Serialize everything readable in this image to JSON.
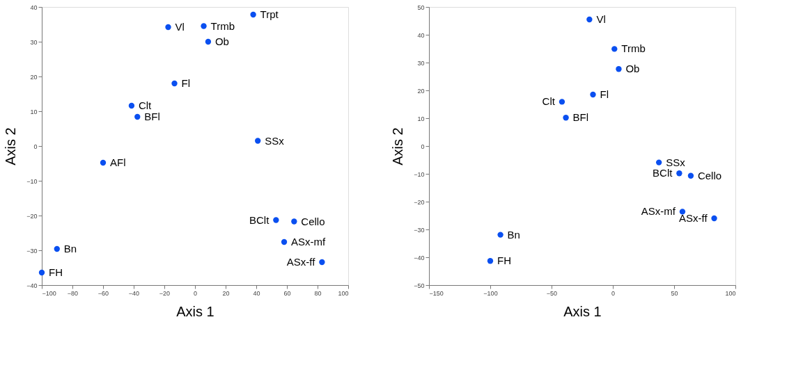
{
  "chart_data": [
    {
      "type": "scatter",
      "xlabel": "Axis 1",
      "ylabel": "Axis 2",
      "color": "#0a4ff0",
      "marker": "circle",
      "grid": false,
      "xlim": [
        -100,
        100
      ],
      "ylim": [
        -40,
        40
      ],
      "xticks": [
        -100,
        -80,
        -60,
        -40,
        -20,
        0,
        20,
        40,
        60,
        80,
        100
      ],
      "yticks": [
        -40,
        -30,
        -20,
        -10,
        0,
        10,
        20,
        30,
        40
      ],
      "x": [
        -17.5,
        5.7,
        38,
        8.6,
        -13.4,
        -41.4,
        -37.6,
        41,
        -60,
        52.9,
        64.7,
        58.2,
        82.9,
        -90.1,
        -100
      ],
      "values": [
        34.2,
        34.5,
        37.8,
        30.0,
        18.0,
        11.6,
        8.4,
        1.5,
        -4.8,
        -21.3,
        -21.7,
        -27.6,
        -33.4,
        -29.6,
        -36.4
      ],
      "annotations": [
        {
          "text": "Vl",
          "x": -17.5,
          "y": 34.2
        },
        {
          "text": "Trmb",
          "x": 5.7,
          "y": 34.5
        },
        {
          "text": "Trpt",
          "x": 38,
          "y": 37.8
        },
        {
          "text": "Ob",
          "x": 8.6,
          "y": 30.0
        },
        {
          "text": "Fl",
          "x": -13.4,
          "y": 18.0
        },
        {
          "text": "Clt",
          "x": -41.4,
          "y": 11.6
        },
        {
          "text": "BFl",
          "x": -37.6,
          "y": 8.4
        },
        {
          "text": "SSx",
          "x": 41,
          "y": 1.5
        },
        {
          "text": "AFl",
          "x": -60,
          "y": -4.8
        },
        {
          "text": "BClt",
          "x": 52.9,
          "y": -21.3
        },
        {
          "text": "Cello",
          "x": 64.7,
          "y": -21.7
        },
        {
          "text": "ASx-mf",
          "x": 58.2,
          "y": -27.6
        },
        {
          "text": "ASx-ff",
          "x": 82.9,
          "y": -33.4
        },
        {
          "text": "Bn",
          "x": -90.1,
          "y": -29.6
        },
        {
          "text": "FH",
          "x": -100,
          "y": -36.4
        }
      ]
    },
    {
      "type": "scatter",
      "xlabel": "Axis 1",
      "ylabel": "Axis 2",
      "color": "#0a4ff0",
      "marker": "circle",
      "grid": false,
      "xlim": [
        -150,
        100
      ],
      "ylim": [
        -50,
        50
      ],
      "xticks": [
        -150,
        -100,
        -50,
        0,
        50,
        100
      ],
      "yticks": [
        -50,
        -40,
        -30,
        -20,
        -10,
        0,
        10,
        20,
        30,
        40,
        50
      ],
      "x": [
        -19.1,
        1.3,
        4.8,
        -16.2,
        -41.5,
        -38.3,
        37.6,
        54.2,
        63.6,
        56.8,
        82.7,
        -91.7,
        -100
      ],
      "values": [
        45.5,
        34.9,
        27.7,
        18.5,
        15.9,
        10.2,
        -5.9,
        -9.8,
        -10.7,
        -23.6,
        -26.0,
        -31.9,
        -41.3
      ],
      "annotations": [
        {
          "text": "Vl",
          "x": -19.1,
          "y": 45.5
        },
        {
          "text": "Trmb",
          "x": 1.3,
          "y": 34.9
        },
        {
          "text": "Ob",
          "x": 4.8,
          "y": 27.7
        },
        {
          "text": "Fl",
          "x": -16.2,
          "y": 18.5
        },
        {
          "text": "Clt",
          "x": -41.5,
          "y": 15.9
        },
        {
          "text": "BFl",
          "x": -38.3,
          "y": 10.2
        },
        {
          "text": "SSx",
          "x": 37.6,
          "y": -5.9
        },
        {
          "text": "BClt",
          "x": 54.2,
          "y": -9.8
        },
        {
          "text": "Cello",
          "x": 63.6,
          "y": -10.7
        },
        {
          "text": "ASx-mf",
          "x": 56.8,
          "y": -23.6
        },
        {
          "text": "ASx-ff",
          "x": 82.7,
          "y": -26.0
        },
        {
          "text": "Bn",
          "x": -91.7,
          "y": -31.9
        },
        {
          "text": "FH",
          "x": -100,
          "y": -41.3
        }
      ]
    }
  ]
}
